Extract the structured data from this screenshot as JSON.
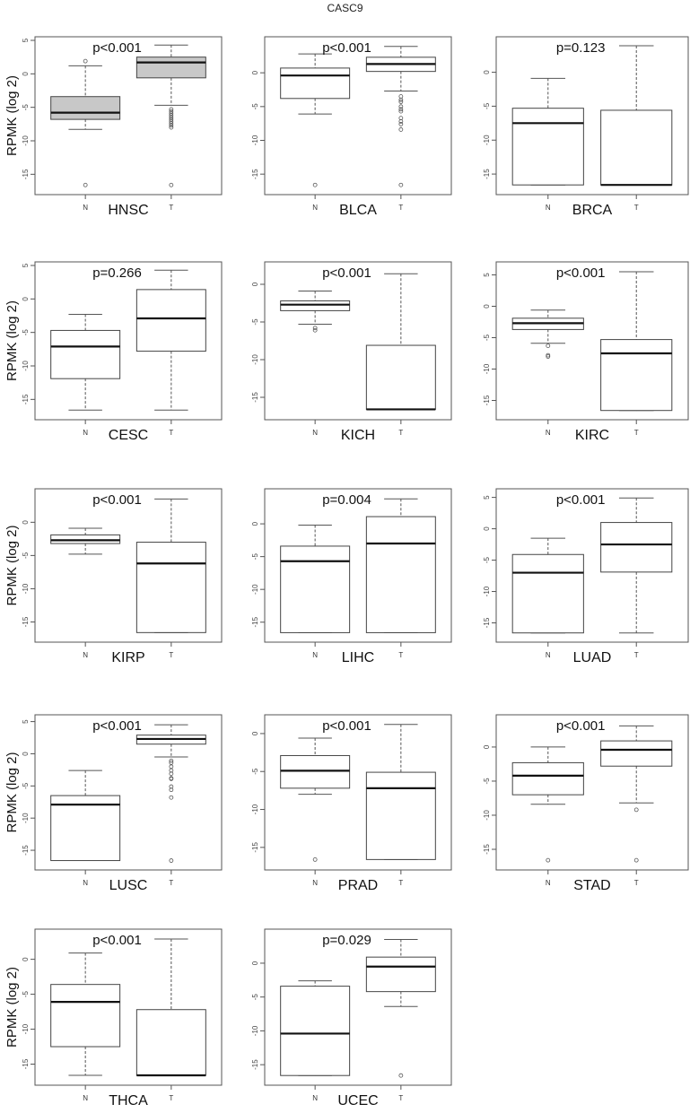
{
  "title": "CASC9",
  "ylabel": "RPMK (log 2)",
  "group_labels": [
    "N",
    "T"
  ],
  "chart_data": {
    "type": "boxplot",
    "title": "CASC9",
    "ylabel": "RPMK (log 2)",
    "xlabel_per_panel": "cancer type",
    "categories": [
      "N",
      "T"
    ],
    "panels": [
      {
        "cancer": "HNSC",
        "pvalue": "p<0.001",
        "fill": "#c8c8c8",
        "ylim": [
          -17.5,
          5
        ],
        "ticks": [
          5,
          0,
          -5,
          -10,
          -15
        ],
        "N": {
          "q1": -6.8,
          "median": -5.8,
          "q3": -3.4,
          "wlo": -8.3,
          "whi": 1.2,
          "outliers": [
            1.9,
            -16.6
          ]
        },
        "T": {
          "q1": -0.6,
          "median": 1.7,
          "q3": 2.5,
          "wlo": -4.7,
          "whi": 4.3,
          "outliers": [
            -5.3,
            -5.6,
            -5.9,
            -6.2,
            -6.5,
            -6.8,
            -7.1,
            -7.4,
            -7.7,
            -8.0,
            -16.6
          ]
        }
      },
      {
        "cancer": "BLCA",
        "pvalue": "p<0.001",
        "fill": "#ffffff",
        "ylim": [
          -17.5,
          4.8
        ],
        "ticks": [
          0,
          -5,
          -10,
          -15
        ],
        "N": {
          "q1": -3.8,
          "median": -0.4,
          "q3": 0.7,
          "wlo": -6.1,
          "whi": 2.8,
          "outliers": [
            -16.6
          ]
        },
        "T": {
          "q1": 0.2,
          "median": 1.3,
          "q3": 2.3,
          "wlo": -2.7,
          "whi": 3.9,
          "outliers": [
            -3.5,
            -4.0,
            -4.3,
            -5.0,
            -5.4,
            -5.7,
            -6.7,
            -7.2,
            -7.6,
            -8.4,
            -16.6
          ]
        }
      },
      {
        "cancer": "BRCA",
        "pvalue": "p=0.123",
        "fill": "#ffffff",
        "ylim": [
          -17.5,
          4.7
        ],
        "ticks": [
          0,
          -5,
          -10,
          -15
        ],
        "N": {
          "q1": -16.6,
          "median": -7.5,
          "q3": -5.3,
          "wlo": -16.6,
          "whi": -0.9,
          "outliers": []
        },
        "T": {
          "q1": -16.6,
          "median": -16.6,
          "q3": -5.6,
          "wlo": -16.6,
          "whi": 3.9,
          "outliers": []
        }
      },
      {
        "cancer": "CESC",
        "pvalue": "p=0.266",
        "fill": "#ffffff",
        "ylim": [
          -17.5,
          5
        ],
        "ticks": [
          5,
          0,
          -5,
          -10,
          -15
        ],
        "N": {
          "q1": -11.9,
          "median": -7.1,
          "q3": -4.7,
          "wlo": -16.6,
          "whi": -2.3,
          "outliers": []
        },
        "T": {
          "q1": -7.8,
          "median": -2.9,
          "q3": 1.4,
          "wlo": -16.6,
          "whi": 4.3,
          "outliers": []
        }
      },
      {
        "cancer": "KICH",
        "pvalue": "p<0.001",
        "fill": "#ffffff",
        "ylim": [
          -17.5,
          2.5
        ],
        "ticks": [
          0,
          -5,
          -10,
          -15
        ],
        "N": {
          "q1": -3.5,
          "median": -2.7,
          "q3": -2.2,
          "wlo": -5.3,
          "whi": -0.9,
          "outliers": [
            -5.8,
            -6.1
          ]
        },
        "T": {
          "q1": -16.6,
          "median": -16.6,
          "q3": -8.1,
          "wlo": -16.6,
          "whi": 1.4,
          "outliers": []
        }
      },
      {
        "cancer": "KIRC",
        "pvalue": "p<0.001",
        "fill": "#ffffff",
        "ylim": [
          -17.5,
          6.5
        ],
        "ticks": [
          5,
          0,
          -5,
          -10,
          -15
        ],
        "N": {
          "q1": -3.7,
          "median": -2.7,
          "q3": -1.9,
          "wlo": -5.9,
          "whi": -0.6,
          "outliers": [
            -6.3,
            -7.8,
            -8.0
          ]
        },
        "T": {
          "q1": -16.6,
          "median": -7.5,
          "q3": -5.3,
          "wlo": -16.6,
          "whi": 5.5,
          "outliers": []
        }
      },
      {
        "cancer": "KIRP",
        "pvalue": "p<0.001",
        "fill": "#ffffff",
        "ylim": [
          -17.5,
          4.5
        ],
        "ticks": [
          0,
          -5,
          -10,
          -15
        ],
        "N": {
          "q1": -3.2,
          "median": -2.7,
          "q3": -1.9,
          "wlo": -4.8,
          "whi": -0.9,
          "outliers": []
        },
        "T": {
          "q1": -16.6,
          "median": -6.2,
          "q3": -3.0,
          "wlo": -16.6,
          "whi": 3.5,
          "outliers": []
        }
      },
      {
        "cancer": "LIHC",
        "pvalue": "p=0.004",
        "fill": "#ffffff",
        "ylim": [
          -17.5,
          4.8
        ],
        "ticks": [
          0,
          -5,
          -10,
          -15
        ],
        "N": {
          "q1": -16.6,
          "median": -5.7,
          "q3": -3.4,
          "wlo": -16.6,
          "whi": -0.2,
          "outliers": []
        },
        "T": {
          "q1": -16.6,
          "median": -3.0,
          "q3": 1.1,
          "wlo": -16.6,
          "whi": 3.8,
          "outliers": []
        }
      },
      {
        "cancer": "LUAD",
        "pvalue": "p<0.001",
        "fill": "#ffffff",
        "ylim": [
          -17.5,
          5.8
        ],
        "ticks": [
          5,
          0,
          -5,
          -10,
          -15
        ],
        "N": {
          "q1": -16.6,
          "median": -7.0,
          "q3": -4.1,
          "wlo": -16.6,
          "whi": -1.5,
          "outliers": []
        },
        "T": {
          "q1": -6.9,
          "median": -2.5,
          "q3": 1.0,
          "wlo": -16.6,
          "whi": 4.9,
          "outliers": []
        }
      },
      {
        "cancer": "LUSC",
        "pvalue": "p<0.001",
        "fill": "#ffffff",
        "ylim": [
          -17.5,
          5.5
        ],
        "ticks": [
          5,
          0,
          -5,
          -10,
          -15
        ],
        "N": {
          "q1": -16.6,
          "median": -7.9,
          "q3": -6.5,
          "wlo": -16.6,
          "whi": -2.6,
          "outliers": []
        },
        "T": {
          "q1": 1.5,
          "median": 2.3,
          "q3": 2.9,
          "wlo": -0.5,
          "whi": 4.5,
          "outliers": [
            -1.1,
            -1.4,
            -2.0,
            -2.6,
            -3.1,
            -3.8,
            -3.9,
            -5.1,
            -5.6,
            -6.8,
            -16.6
          ]
        }
      },
      {
        "cancer": "PRAD",
        "pvalue": "p<0.001",
        "fill": "#ffffff",
        "ylim": [
          -17.5,
          2
        ],
        "ticks": [
          0,
          -5,
          -10,
          -15
        ],
        "N": {
          "q1": -7.2,
          "median": -4.9,
          "q3": -2.9,
          "wlo": -8.0,
          "whi": -0.6,
          "outliers": [
            -16.6
          ]
        },
        "T": {
          "q1": -16.6,
          "median": -7.2,
          "q3": -5.1,
          "wlo": -16.6,
          "whi": 1.2,
          "outliers": []
        }
      },
      {
        "cancer": "STAD",
        "pvalue": "p<0.001",
        "fill": "#ffffff",
        "ylim": [
          -17.5,
          4.2
        ],
        "ticks": [
          0,
          -5,
          -10,
          -15
        ],
        "N": {
          "q1": -7.0,
          "median": -4.2,
          "q3": -2.3,
          "wlo": -8.4,
          "whi": 0.0,
          "outliers": [
            -16.6
          ]
        },
        "T": {
          "q1": -2.8,
          "median": -0.4,
          "q3": 0.9,
          "wlo": -8.2,
          "whi": 3.1,
          "outliers": [
            -9.2,
            -16.6
          ]
        }
      },
      {
        "cancer": "THCA",
        "pvalue": "p<0.001",
        "fill": "#ffffff",
        "ylim": [
          -17.5,
          3.8
        ],
        "ticks": [
          0,
          -5,
          -10,
          -15
        ],
        "N": {
          "q1": -12.5,
          "median": -6.1,
          "q3": -3.6,
          "wlo": -16.6,
          "whi": 0.9,
          "outliers": []
        },
        "T": {
          "q1": -16.6,
          "median": -16.6,
          "q3": -7.2,
          "wlo": -16.6,
          "whi": 2.9,
          "outliers": []
        }
      },
      {
        "cancer": "UCEC",
        "pvalue": "p=0.029",
        "fill": "#ffffff",
        "ylim": [
          -17.5,
          4.5
        ],
        "ticks": [
          0,
          -5,
          -10,
          -15
        ],
        "N": {
          "q1": -16.6,
          "median": -10.4,
          "q3": -3.4,
          "wlo": -16.6,
          "whi": -2.6,
          "outliers": []
        },
        "T": {
          "q1": -4.2,
          "median": -0.5,
          "q3": 0.9,
          "wlo": -6.4,
          "whi": 3.5,
          "outliers": [
            -16.6
          ]
        }
      }
    ]
  }
}
